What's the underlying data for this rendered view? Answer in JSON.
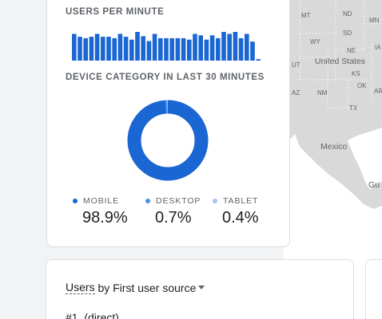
{
  "map": {
    "labels": {
      "mt": "MT",
      "nd": "ND",
      "mn": "MN",
      "sd": "SD",
      "wy": "WY",
      "ne": "NE",
      "ia": "IA",
      "ut": "UT",
      "united_states": "United States",
      "ks": "KS",
      "az": "AZ",
      "nm": "NM",
      "ok": "OK",
      "ar": "AR",
      "tx": "TX",
      "mexico": "Mexico",
      "gulf": "Gu"
    }
  },
  "realtime": {
    "users_per_minute_label": "USERS PER MINUTE",
    "users_per_minute": [
      0.93,
      0.83,
      0.78,
      0.83,
      0.93,
      0.83,
      0.83,
      0.78,
      0.93,
      0.83,
      0.73,
      1.0,
      0.85,
      0.68,
      0.93,
      0.78,
      0.78,
      0.78,
      0.78,
      0.78,
      0.73,
      0.93,
      0.88,
      0.73,
      0.88,
      0.78,
      1.0,
      0.93,
      1.0,
      0.78,
      0.93,
      0.66,
      0.05
    ],
    "device_label": "DEVICE CATEGORY IN LAST 30 MINUTES",
    "device_categories": [
      {
        "name": "MOBILE",
        "value": "98.9%",
        "share": 98.9,
        "color": "#1a66d2"
      },
      {
        "name": "DESKTOP",
        "value": "0.7%",
        "share": 0.7,
        "color": "#4a8ef0"
      },
      {
        "name": "TABLET",
        "value": "0.4%",
        "share": 0.4,
        "color": "#a5c4f5"
      }
    ]
  },
  "users_card": {
    "title_dimension": "Users",
    "title_rest": " by First user source",
    "first_row": "#1  (direct)"
  }
}
